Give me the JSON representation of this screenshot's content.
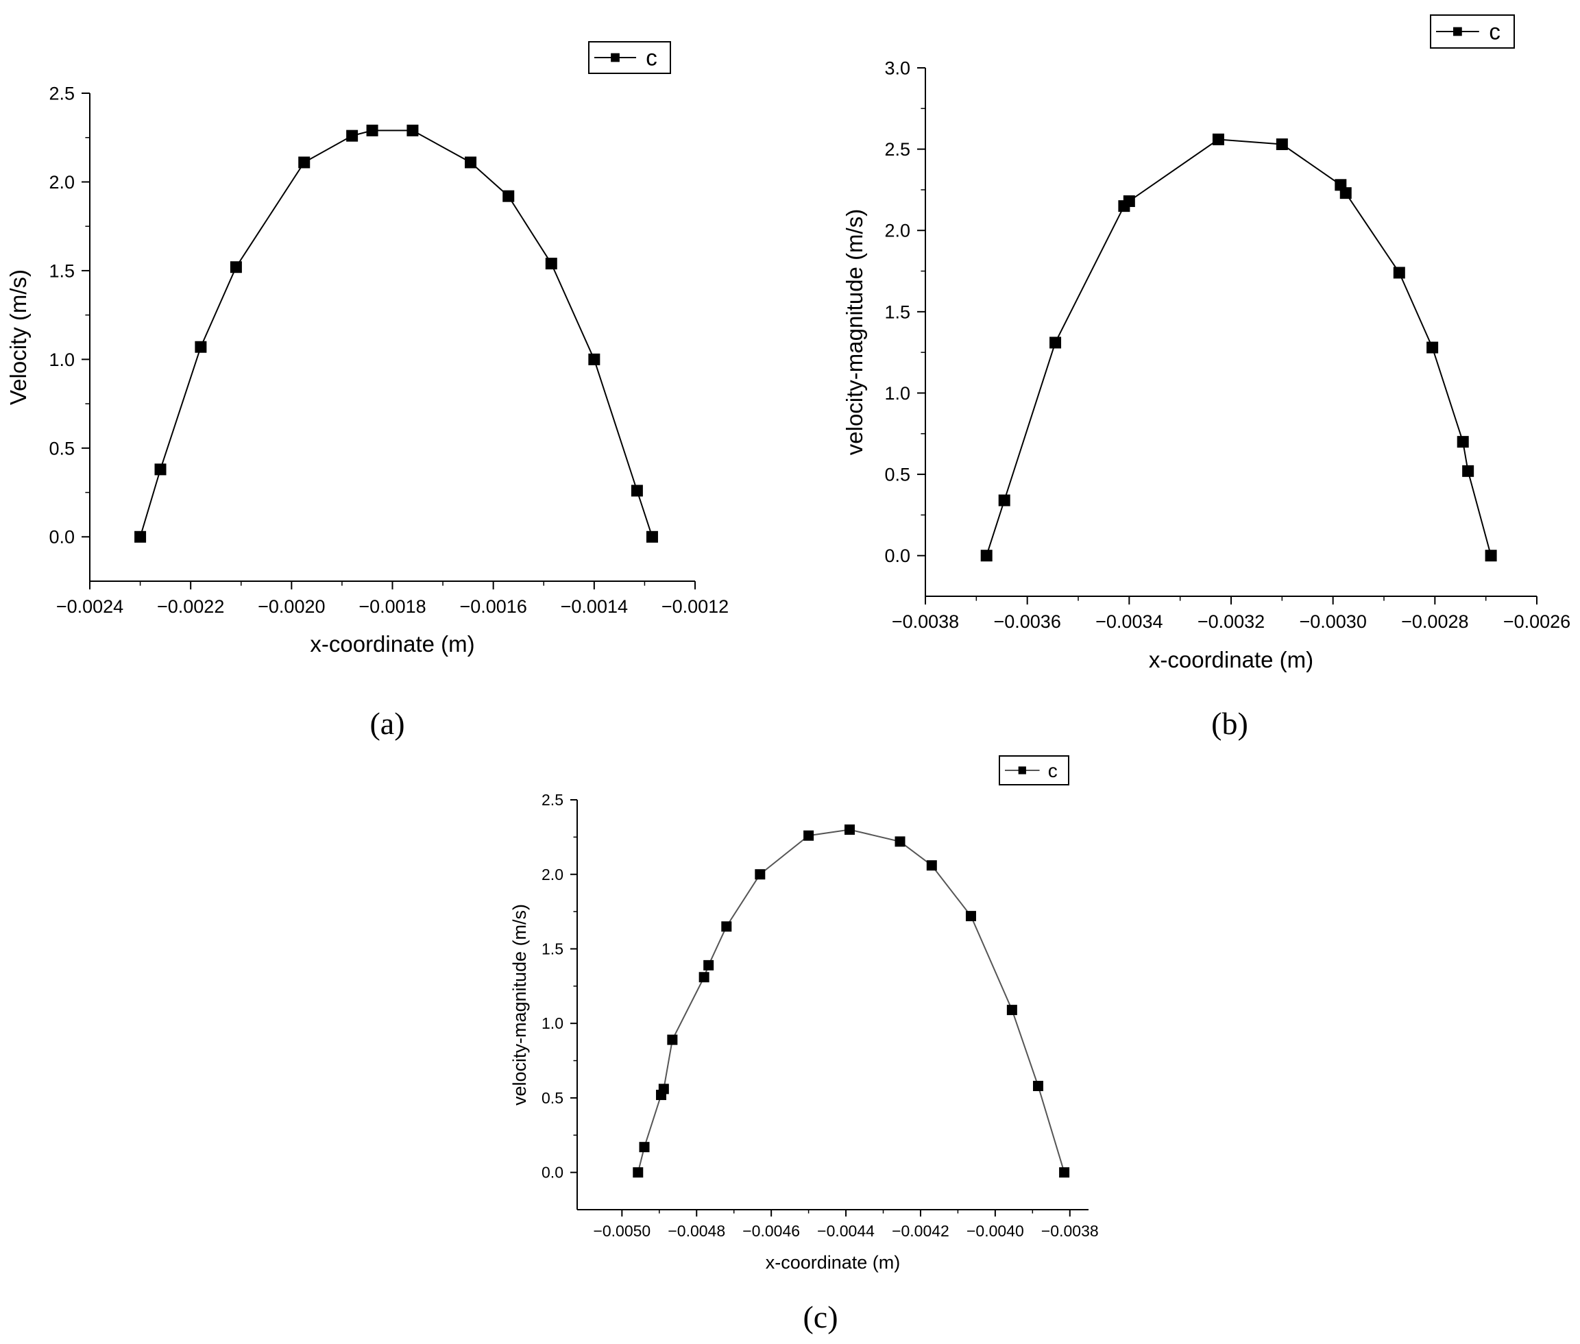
{
  "chart_data": [
    {
      "type": "line",
      "caption": "(a)",
      "xlabel": "x-coordinate (m)",
      "ylabel": "Velocity (m/s)",
      "xlim": [
        -0.0024,
        -0.0012
      ],
      "ylim": [
        -0.25,
        2.5
      ],
      "xticks": [
        -0.0024,
        -0.0022,
        -0.002,
        -0.0018,
        -0.0016,
        -0.0014,
        -0.0012
      ],
      "xtick_labels": [
        "−0.0024",
        "−0.0022",
        "−0.0020",
        "−0.0018",
        "−0.0016",
        "−0.0014",
        "−0.0012"
      ],
      "yticks": [
        0,
        0.5,
        1.0,
        1.5,
        2.0,
        2.5
      ],
      "ytick_labels": [
        "0.0",
        "0.5",
        "1.0",
        "1.5",
        "2.0",
        "2.5"
      ],
      "legend": {
        "label": "c",
        "position": "top-right"
      },
      "grid": false,
      "marker": "square",
      "line_color": "#000000",
      "series": [
        {
          "name": "c",
          "x": [
            -0.0023,
            -0.00226,
            -0.00218,
            -0.00211,
            -0.001975,
            -0.00188,
            -0.00184,
            -0.00176,
            -0.001645,
            -0.00157,
            -0.001485,
            -0.0014,
            -0.001315,
            -0.001285
          ],
          "y": [
            0.0,
            0.38,
            1.07,
            1.52,
            2.11,
            2.26,
            2.29,
            2.29,
            2.11,
            1.92,
            1.54,
            1.0,
            0.26,
            0.0
          ]
        }
      ]
    },
    {
      "type": "line",
      "caption": "(b)",
      "xlabel": "x-coordinate (m)",
      "ylabel": "velocity-magnitude (m/s)",
      "xlim": [
        -0.0038,
        -0.0026
      ],
      "ylim": [
        -0.25,
        3.0
      ],
      "xticks": [
        -0.0038,
        -0.0036,
        -0.0034,
        -0.0032,
        -0.003,
        -0.0028,
        -0.0026
      ],
      "xtick_labels": [
        "−0.0038",
        "−0.0036",
        "−0.0034",
        "−0.0032",
        "−0.0030",
        "−0.0028",
        "−0.0026"
      ],
      "yticks": [
        0,
        0.5,
        1.0,
        1.5,
        2.0,
        2.5,
        3.0
      ],
      "ytick_labels": [
        "0.0",
        "0.5",
        "1.0",
        "1.5",
        "2.0",
        "2.5",
        "3.0"
      ],
      "legend": {
        "label": "c",
        "position": "top-right"
      },
      "grid": false,
      "marker": "square",
      "line_color": "#000000",
      "series": [
        {
          "name": "c",
          "x": [
            -0.00368,
            -0.003645,
            -0.003545,
            -0.00341,
            -0.0034,
            -0.003225,
            -0.0031,
            -0.002985,
            -0.002975,
            -0.00287,
            -0.002805,
            -0.002745,
            -0.002735,
            -0.00269
          ],
          "y": [
            0.0,
            0.34,
            1.31,
            2.15,
            2.18,
            2.56,
            2.53,
            2.28,
            2.23,
            1.74,
            1.28,
            0.7,
            0.52,
            0.0
          ]
        }
      ]
    },
    {
      "type": "line",
      "caption": "(c)",
      "xlabel": "x-coordinate (m)",
      "ylabel": "velocity-magnitude (m/s)",
      "xlim": [
        -0.00512,
        -0.00375
      ],
      "ylim": [
        -0.25,
        2.5
      ],
      "xticks": [
        -0.005,
        -0.0048,
        -0.0046,
        -0.0044,
        -0.0042,
        -0.004,
        -0.0038
      ],
      "xtick_labels": [
        "−0.0050",
        "−0.0048",
        "−0.0046",
        "−0.0044",
        "−0.0042",
        "−0.0040",
        "−0.0038"
      ],
      "yticks": [
        0,
        0.5,
        1.0,
        1.5,
        2.0,
        2.5
      ],
      "ytick_labels": [
        "0.0",
        "0.5",
        "1.0",
        "1.5",
        "2.0",
        "2.5"
      ],
      "legend": {
        "label": "c",
        "position": "top-right"
      },
      "grid": false,
      "marker": "square",
      "line_color": "#555555",
      "series": [
        {
          "name": "c",
          "x": [
            -0.004957,
            -0.00494,
            -0.004895,
            -0.004888,
            -0.004865,
            -0.00478,
            -0.004768,
            -0.00472,
            -0.00463,
            -0.0045,
            -0.00439,
            -0.004255,
            -0.00417,
            -0.004065,
            -0.003955,
            -0.003885,
            -0.003815
          ],
          "y": [
            0.0,
            0.17,
            0.52,
            0.56,
            0.89,
            1.31,
            1.39,
            1.65,
            2.0,
            2.26,
            2.3,
            2.22,
            2.06,
            1.72,
            1.09,
            0.58,
            0.0
          ]
        }
      ]
    }
  ]
}
